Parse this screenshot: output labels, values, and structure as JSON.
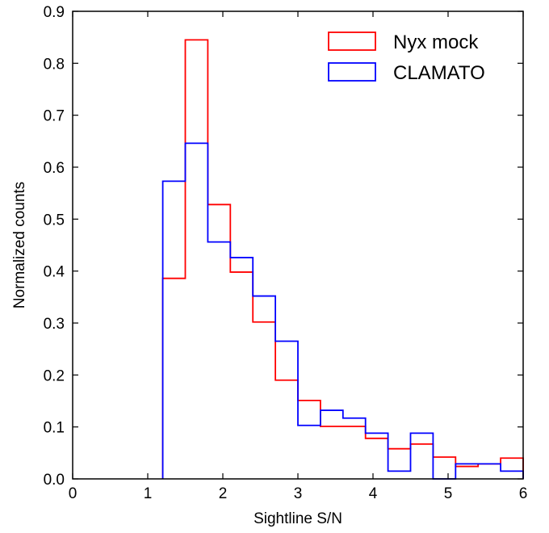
{
  "chart_data": {
    "type": "histogram",
    "xlabel": "Sightline S/N",
    "ylabel": "Normalized counts",
    "xlim": [
      0,
      6
    ],
    "ylim": [
      0,
      0.9
    ],
    "xticks": [
      "0",
      "1",
      "2",
      "3",
      "4",
      "5",
      "6"
    ],
    "yticks": [
      "0.0",
      "0.1",
      "0.2",
      "0.3",
      "0.4",
      "0.5",
      "0.6",
      "0.7",
      "0.8",
      "0.9"
    ],
    "bin_edges": [
      1.2,
      1.5,
      1.8,
      2.1,
      2.4,
      2.7,
      3.0,
      3.3,
      3.6,
      3.9,
      4.2,
      4.5,
      4.8,
      5.1,
      5.4,
      5.7,
      6.0
    ],
    "grid": false,
    "legend_position": "top-right",
    "series": [
      {
        "name": "Nyx mock",
        "color": "#ff0000",
        "values": [
          0.386,
          0.845,
          0.528,
          0.398,
          0.302,
          0.19,
          0.151,
          0.101,
          0.101,
          0.078,
          0.058,
          0.067,
          0.042,
          0.024,
          0.029,
          0.04
        ]
      },
      {
        "name": "CLAMATO",
        "color": "#0000ff",
        "values": [
          0.573,
          0.646,
          0.456,
          0.426,
          0.352,
          0.265,
          0.103,
          0.132,
          0.117,
          0.088,
          0.015,
          0.088,
          0.0,
          0.029,
          0.029,
          0.015
        ]
      }
    ]
  }
}
